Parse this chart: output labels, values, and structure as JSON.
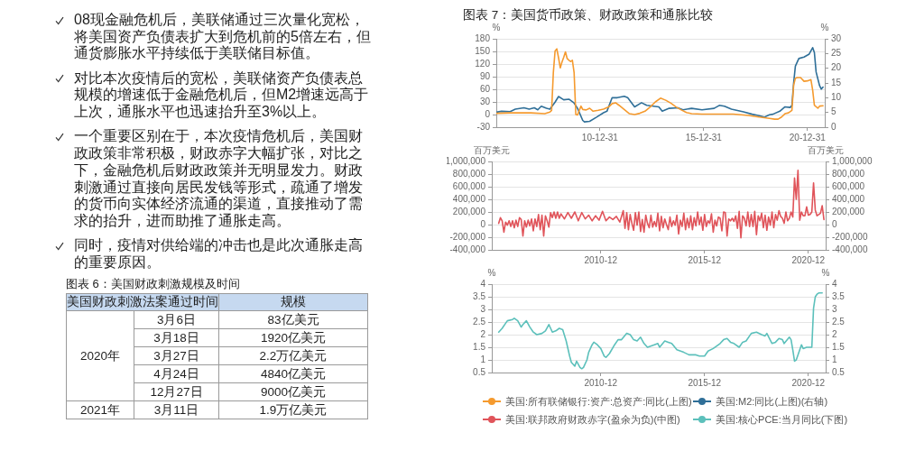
{
  "chart_data": [
    {
      "type": "other",
      "annotations": [
        "08现金融危机后，美联储通过三次量化宽松，将美国资产负债表扩大到危机前的5倍左右，但通货膨胀水平持续低于美联储目标值。",
        "对比本次疫情后的宽松，美联储资产负债表总规模的增速低于金融危机后，但M2增速远高于上次，通胀水平也迅速抬升至3%以上。",
        "一个重要区别在于，本次疫情危机后，美国财政政策非常积极，财政赤字大幅扩张，对比之下，金融危机后财政政策并无明显发力。财政刺激通过直接向居民发钱等形式，疏通了增发的货币向实体经济流通的渠道，直接推动了需求的抬升，进而助推了通胀走高。",
        "同时，疫情对供给端的冲击也是此次通胀走高的重要原因。"
      ]
    },
    {
      "type": "other",
      "title": "图表 6：美国财政刺激规模及时间",
      "categories": [
        "美国财政刺激法案通过时间",
        "规模"
      ],
      "cell_labels": [
        [
          "2020年",
          "3月6日",
          "83亿美元"
        ],
        [
          null,
          "3月18日",
          "1920亿美元"
        ],
        [
          null,
          "3月27日",
          "2.2万亿美元"
        ],
        [
          null,
          "4月24日",
          "4840亿美元"
        ],
        [
          null,
          "12月27日",
          "9000亿美元"
        ],
        [
          "2021年",
          "3月11日",
          "1.9万亿美元"
        ]
      ]
    },
    {
      "type": "line",
      "title": "图表 7：美国货币政策、财政政策和通胀比较",
      "ylabel": "%",
      "y2label": "%",
      "xlim": [
        "2006-01",
        "2021-11"
      ],
      "xticks": [
        {
          "value": "2010-12-31",
          "label": "10-12-31"
        },
        {
          "value": "2015-12-31",
          "label": "15-12-31"
        },
        {
          "value": "2020-12-31",
          "label": "20-12-31"
        }
      ],
      "ylim": [
        -30,
        180
      ],
      "yticks": [
        -30,
        0,
        30,
        60,
        90,
        120,
        150,
        180
      ],
      "y2lim": [
        0,
        30
      ],
      "y2ticks": [
        0,
        5,
        10,
        15,
        20,
        25,
        30
      ],
      "grid": "y",
      "legend": "bottom",
      "series": [
        {
          "name": "美国:所有联储银行:资产:总资产:同比(上图)",
          "color": "#f59a2e",
          "x": [
            "2006-01",
            "2006-09",
            "2007-09",
            "2008-05",
            "2008-08",
            "2008-09",
            "2008-10",
            "2008-11",
            "2008-12",
            "2009-01",
            "2009-02",
            "2009-03",
            "2009-04",
            "2009-05",
            "2009-06",
            "2009-07",
            "2009-08",
            "2009-09",
            "2009-10",
            "2009-11",
            "2009-12",
            "2010-01",
            "2010-02",
            "2010-03",
            "2010-05",
            "2010-07",
            "2010-09",
            "2010-12",
            "2011-03",
            "2011-06",
            "2011-08",
            "2011-10",
            "2011-12",
            "2012-03",
            "2012-06",
            "2012-09",
            "2012-12",
            "2013-03",
            "2013-06",
            "2013-09",
            "2013-12",
            "2014-03",
            "2014-06",
            "2014-09",
            "2014-12",
            "2015-03",
            "2015-06",
            "2015-12",
            "2016-06",
            "2017-06",
            "2018-03",
            "2018-09",
            "2019-03",
            "2019-06",
            "2019-08",
            "2019-10",
            "2019-12",
            "2020-02",
            "2020-04",
            "2020-05",
            "2020-06",
            "2020-07",
            "2020-09",
            "2020-11",
            "2021-01",
            "2021-03",
            "2021-04",
            "2021-05",
            "2021-07",
            "2021-08",
            "2021-10"
          ],
          "values": [
            3,
            4,
            4,
            2,
            6,
            10,
            100,
            151,
            156,
            135,
            111,
            125,
            136,
            149,
            133,
            129,
            126,
            129,
            100,
            0,
            -1,
            10,
            20,
            12,
            11,
            15,
            8,
            10,
            13,
            18,
            26,
            28,
            22,
            12,
            2,
            0,
            3,
            8,
            18,
            30,
            39,
            34,
            27,
            18,
            11,
            5,
            2,
            1,
            1,
            1,
            -2,
            -6,
            -9,
            -11,
            -11,
            -6,
            2,
            4,
            10,
            70,
            86,
            88,
            88,
            79,
            80,
            83,
            58,
            22,
            15,
            20,
            21
          ]
        },
        {
          "name": "美国:M2:同比(上图)(右轴)",
          "color": "#2f6f98",
          "axis": "y2",
          "x": [
            "2006-01",
            "2006-04",
            "2006-09",
            "2006-12",
            "2007-05",
            "2007-08",
            "2007-11",
            "2008-01",
            "2008-03",
            "2008-06",
            "2008-08",
            "2008-11",
            "2009-01",
            "2009-04",
            "2009-07",
            "2009-10",
            "2009-12",
            "2010-03",
            "2010-04",
            "2010-07",
            "2010-11",
            "2011-03",
            "2011-05",
            "2011-08",
            "2011-11",
            "2012-03",
            "2012-05",
            "2012-09",
            "2013-01",
            "2013-04",
            "2013-11",
            "2014-01",
            "2014-05",
            "2014-10",
            "2015-01",
            "2015-06",
            "2015-12",
            "2016-07",
            "2016-10",
            "2017-01",
            "2017-05",
            "2017-12",
            "2018-05",
            "2018-09",
            "2018-12",
            "2019-03",
            "2019-05",
            "2019-09",
            "2019-12",
            "2020-03",
            "2020-04",
            "2020-05",
            "2020-06",
            "2020-08",
            "2020-11",
            "2021-02",
            "2021-04",
            "2021-05",
            "2021-06",
            "2021-08",
            "2021-09",
            "2021-10"
          ],
          "values": [
            5.1,
            5.4,
            5.3,
            6.1,
            6.6,
            6.1,
            6.6,
            5.9,
            7.1,
            6.4,
            6.1,
            8.5,
            10.4,
            9.3,
            9.5,
            8.2,
            6.4,
            2.3,
            1.8,
            2.0,
            3.4,
            4.9,
            5.4,
            10.0,
            10.0,
            10.5,
            10.0,
            6.9,
            8.3,
            7.4,
            6.9,
            5.4,
            6.4,
            6.6,
            5.9,
            6.4,
            5.9,
            6.4,
            7.4,
            7.1,
            6.1,
            5.2,
            4.4,
            3.9,
            3.4,
            4.2,
            4.4,
            5.4,
            6.9,
            6.7,
            7.4,
            15,
            20.7,
            23.3,
            23.8,
            24.8,
            27.0,
            25.3,
            18.7,
            14.1,
            12.9,
            13.6
          ]
        }
      ]
    },
    {
      "type": "line",
      "ylabel": "百万美元",
      "y2label": "百万美元",
      "xlim": [
        "2005-09",
        "2021-10"
      ],
      "xticks": [
        "2010-12",
        "2015-12",
        "2020-12"
      ],
      "ylim": [
        -400000,
        1000000
      ],
      "yticks": [
        {
          "value": -400000,
          "label": "-400,000"
        },
        {
          "value": -200000,
          "label": "-200,000"
        },
        0,
        {
          "value": 200000,
          "label": "200,000"
        },
        {
          "value": 400000,
          "label": "400,000"
        },
        {
          "value": 600000,
          "label": "600,000"
        },
        {
          "value": 800000,
          "label": "800,000"
        },
        {
          "value": 1000000,
          "label": "1,000,000"
        }
      ],
      "y2lim": [
        -400000,
        1000000
      ],
      "y2ticks": [
        {
          "value": -400000,
          "label": "-400,000"
        },
        {
          "value": -200000,
          "label": "-200,000"
        },
        0,
        {
          "value": 200000,
          "label": "200,000"
        },
        {
          "value": 400000,
          "label": "400,000"
        },
        {
          "value": 600000,
          "label": "600,000"
        },
        {
          "value": 800000,
          "label": "800,000"
        },
        {
          "value": 1000000,
          "label": "1,000,000"
        }
      ],
      "grid": "y",
      "legend": "bottom",
      "series": [
        {
          "name": "美国:联邦政府财政赤字(盈余为负)(中图)",
          "color": "#e0545a",
          "x": [
            "2006-01",
            "2006-02",
            "2006-03",
            "2006-04",
            "2006-05",
            "2006-06",
            "2006-07",
            "2006-08",
            "2006-09",
            "2006-10",
            "2006-11",
            "2006-12",
            "2007-01",
            "2007-02",
            "2007-03",
            "2007-04",
            "2007-05",
            "2007-06",
            "2007-07",
            "2007-08",
            "2007-09",
            "2007-10",
            "2007-11",
            "2007-12",
            "2008-01",
            "2008-02",
            "2008-03",
            "2008-04",
            "2008-05",
            "2008-06",
            "2008-07",
            "2008-08",
            "2008-09",
            "2008-10",
            "2008-11",
            "2008-12",
            "2009-01",
            "2009-03",
            "2009-05",
            "2009-07",
            "2009-09",
            "2009-11",
            "2010-01",
            "2010-03",
            "2010-05",
            "2010-07",
            "2010-09",
            "2010-11",
            "2011-01",
            "2011-03",
            "2011-05",
            "2011-07",
            "2011-09",
            "2011-11",
            "2012-01",
            "2012-02",
            "2012-03",
            "2012-04",
            "2012-05",
            "2012-06",
            "2012-07",
            "2012-08",
            "2012-09",
            "2012-10",
            "2012-11",
            "2012-12",
            "2013-01",
            "2013-02",
            "2013-03",
            "2013-04",
            "2013-05",
            "2013-06",
            "2013-07",
            "2013-08",
            "2013-09",
            "2013-10",
            "2013-11",
            "2013-12",
            "2014-01",
            "2014-02",
            "2014-03",
            "2014-04",
            "2014-05",
            "2014-06",
            "2014-07",
            "2014-08",
            "2014-09",
            "2014-10",
            "2014-11",
            "2014-12",
            "2015-01",
            "2015-02",
            "2015-03",
            "2015-04",
            "2015-05",
            "2015-06",
            "2015-07",
            "2015-08",
            "2015-09",
            "2015-10",
            "2015-11",
            "2015-12",
            "2016-01",
            "2016-02",
            "2016-03",
            "2016-04",
            "2016-05",
            "2016-06",
            "2016-07",
            "2016-08",
            "2016-09",
            "2016-10",
            "2016-11",
            "2016-12",
            "2017-01",
            "2017-02",
            "2017-03",
            "2017-04",
            "2017-05",
            "2017-06",
            "2017-07",
            "2017-08",
            "2017-09",
            "2017-10",
            "2017-11",
            "2017-12",
            "2018-01",
            "2018-02",
            "2018-03",
            "2018-04",
            "2018-05",
            "2018-06",
            "2018-07",
            "2018-08",
            "2018-09",
            "2018-10",
            "2018-11",
            "2018-12",
            "2019-01",
            "2019-02",
            "2019-03",
            "2019-04",
            "2019-05",
            "2019-06",
            "2019-07",
            "2019-08",
            "2019-09",
            "2019-10",
            "2019-11",
            "2019-12",
            "2020-01",
            "2020-02",
            "2020-03",
            "2020-04",
            "2020-05",
            "2020-06",
            "2020-07",
            "2020-08",
            "2020-09",
            "2020-10",
            "2020-11",
            "2020-12",
            "2021-01",
            "2021-02",
            "2021-03",
            "2021-04",
            "2021-05",
            "2021-06",
            "2021-07",
            "2021-08",
            "2021-09"
          ],
          "values": [
            20000,
            110000,
            60000,
            -120000,
            40000,
            -10000,
            60000,
            -30000,
            60000,
            -50000,
            70000,
            -30000,
            110000,
            80000,
            -180000,
            60000,
            -40000,
            70000,
            -20000,
            90000,
            -100000,
            90000,
            -30000,
            160000,
            -80000,
            150000,
            -180000,
            140000,
            60000,
            -40000,
            190000,
            110000,
            200000,
            100000,
            200000,
            100000,
            170000,
            90000,
            190000,
            100000,
            200000,
            60000,
            190000,
            90000,
            150000,
            60000,
            140000,
            70000,
            210000,
            60000,
            120000,
            80000,
            130000,
            40000,
            220000,
            -60000,
            190000,
            -80000,
            160000,
            20000,
            -90000,
            190000,
            -10000,
            200000,
            -110000,
            80000,
            -120000,
            150000,
            20000,
            -50000,
            150000,
            -40000,
            50000,
            -30000,
            180000,
            -100000,
            130000,
            -50000,
            90000,
            0,
            -80000,
            120000,
            -30000,
            60000,
            -10000,
            150000,
            -150000,
            70000,
            -30000,
            180000,
            -80000,
            100000,
            -50000,
            140000,
            -80000,
            110000,
            -20000,
            200000,
            0,
            120000,
            -90000,
            160000,
            -30000,
            60000,
            20000,
            170000,
            -120000,
            70000,
            -20000,
            120000,
            100000,
            -100000,
            200000,
            190000,
            -180000,
            90000,
            60000,
            100000,
            50000,
            140000,
            -60000,
            210000,
            -210000,
            140000,
            100000,
            -20000,
            200000,
            -30000,
            160000,
            -30000,
            210000,
            -160000,
            140000,
            60000,
            180000,
            -50000,
            150000,
            -90000,
            120000,
            -10000,
            200000,
            -50000,
            160000,
            70000,
            220000,
            130000,
            100000,
            20000,
            200000,
            60000,
            100000,
            200000,
            120000,
            740000,
            400000,
            860000,
            70000,
            200000,
            140000,
            140000,
            280000,
            150000,
            160000,
            200000,
            660000,
            230000,
            140000,
            160000,
            180000,
            300000,
            80000
          ]
        }
      ]
    },
    {
      "type": "line",
      "ylabel": "%",
      "y2label": "%",
      "xlim": [
        "2005-09",
        "2021-10"
      ],
      "xticks": [
        "2010-12",
        "2015-12",
        "2020-12"
      ],
      "ylim": [
        0.5,
        4
      ],
      "yticks": [
        0.5,
        1,
        1.5,
        2,
        2.5,
        3,
        3.5,
        4
      ],
      "y2lim": [
        0.5,
        4
      ],
      "y2ticks": [
        0.5,
        1,
        1.5,
        2,
        2.5,
        3,
        3.5,
        4
      ],
      "grid": "y",
      "legend": "bottom",
      "series": [
        {
          "name": "美国:核心PCE:当月同比(下图)",
          "color": "#5cc0bb",
          "x": [
            "2006-01",
            "2006-03",
            "2006-05",
            "2006-06",
            "2006-09",
            "2006-10",
            "2006-12",
            "2007-02",
            "2007-03",
            "2007-05",
            "2007-07",
            "2007-09",
            "2007-11",
            "2008-02",
            "2008-04",
            "2008-06",
            "2008-07",
            "2008-08",
            "2008-10",
            "2008-12",
            "2009-02",
            "2009-04",
            "2009-06",
            "2009-07",
            "2009-09",
            "2009-10",
            "2009-12",
            "2010-01",
            "2010-02",
            "2010-04",
            "2010-05",
            "2010-07",
            "2010-08",
            "2010-10",
            "2010-12",
            "2011-02",
            "2011-03",
            "2011-05",
            "2011-08",
            "2011-10",
            "2011-12",
            "2012-03",
            "2012-05",
            "2012-07",
            "2012-09",
            "2012-11",
            "2013-01",
            "2013-03",
            "2013-07",
            "2013-09",
            "2013-10",
            "2014-01",
            "2014-03",
            "2014-05",
            "2014-08",
            "2014-12",
            "2015-03",
            "2015-07",
            "2015-09",
            "2015-12",
            "2016-02",
            "2016-05",
            "2016-09",
            "2016-11",
            "2017-01",
            "2017-03",
            "2017-05",
            "2017-08",
            "2017-10",
            "2017-12",
            "2018-03",
            "2018-06",
            "2018-09",
            "2018-11",
            "2018-12",
            "2019-03",
            "2019-05",
            "2019-07",
            "2019-09",
            "2019-10",
            "2020-01",
            "2020-02",
            "2020-03",
            "2020-04",
            "2020-05",
            "2020-06",
            "2020-08",
            "2020-09",
            "2020-11",
            "2021-02",
            "2021-03",
            "2021-04",
            "2021-05",
            "2021-06",
            "2021-08"
          ],
          "values": [
            2.1,
            2.25,
            2.45,
            2.55,
            2.6,
            2.65,
            2.55,
            2.3,
            2.4,
            2.55,
            2.3,
            2.1,
            2.0,
            2.05,
            2.15,
            2.4,
            2.25,
            2.1,
            2.15,
            2.25,
            2.2,
            1.75,
            1.15,
            0.9,
            0.75,
            0.95,
            0.7,
            0.65,
            0.7,
            1.0,
            1.3,
            1.6,
            1.7,
            1.6,
            1.45,
            1.15,
            1.1,
            1.25,
            1.6,
            1.8,
            1.8,
            2.05,
            2.0,
            1.8,
            1.75,
            1.9,
            1.65,
            1.5,
            1.6,
            1.65,
            1.5,
            1.75,
            1.7,
            1.65,
            1.4,
            1.3,
            1.2,
            1.2,
            1.15,
            1.15,
            1.35,
            1.45,
            1.65,
            1.8,
            1.85,
            1.7,
            1.65,
            1.5,
            1.7,
            1.75,
            2.05,
            2.1,
            2.0,
            1.95,
            2.05,
            1.65,
            1.7,
            1.85,
            1.8,
            1.65,
            1.9,
            1.8,
            1.4,
            0.95,
            1.0,
            1.2,
            1.6,
            1.45,
            1.5,
            1.5,
            3.05,
            3.5,
            3.6,
            3.65,
            3.65
          ]
        }
      ]
    }
  ]
}
